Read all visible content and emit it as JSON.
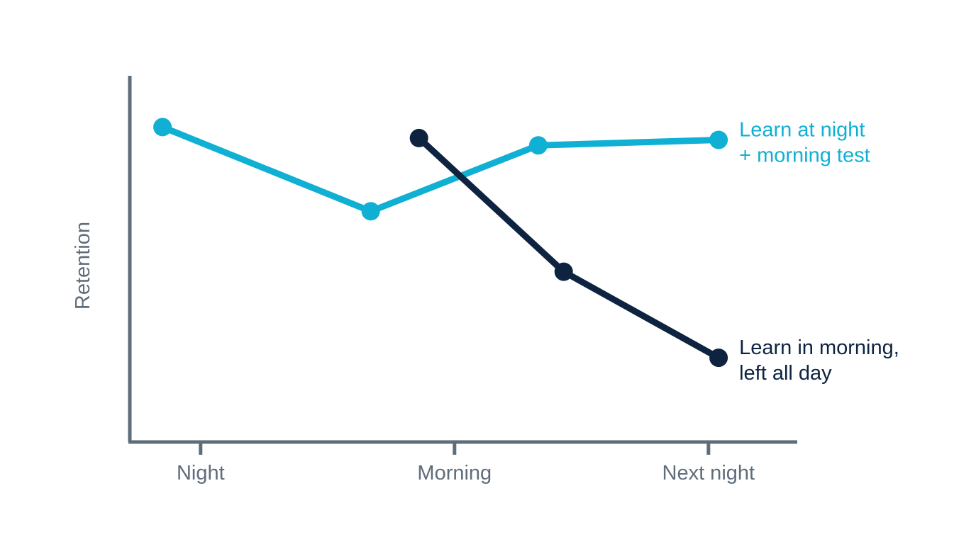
{
  "chart_data": {
    "type": "line",
    "title": "",
    "xlabel": "",
    "ylabel": "Retention",
    "ylim": [
      0,
      100
    ],
    "grid": false,
    "x_ticks": [
      {
        "label": "Night",
        "x": 0.1
      },
      {
        "label": "Morning",
        "x": 1.1
      },
      {
        "label": "Next night",
        "x": 2.1
      }
    ],
    "series": [
      {
        "name": "Learn at night + morning test",
        "label_lines": [
          "Learn at night",
          "+ morning test"
        ],
        "color": "#0fb0d3",
        "x": [
          -0.05,
          0.77,
          1.43,
          2.14
        ],
        "y": [
          86,
          63,
          81,
          82.5
        ]
      },
      {
        "name": "Learn in morning, left all day",
        "label_lines": [
          "Learn in morning,",
          "left all day"
        ],
        "color": "#0d2340",
        "x": [
          0.96,
          1.53,
          2.14
        ],
        "y": [
          83,
          46.5,
          23
        ]
      }
    ]
  }
}
